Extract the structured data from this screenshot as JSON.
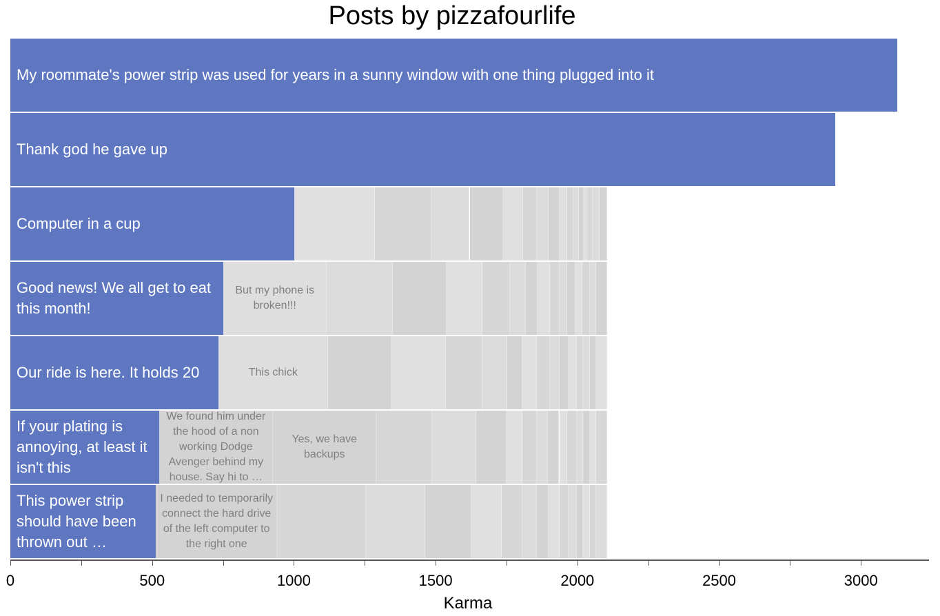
{
  "chart_data": {
    "type": "bar",
    "orientation": "horizontal-stacked",
    "title": "Posts by pizzafourlife",
    "xlabel": "Karma",
    "ylabel": "",
    "xlim": [
      0,
      3240
    ],
    "xticks": [
      0,
      500,
      1000,
      1500,
      2000,
      2500,
      3000
    ],
    "minor_tick_step": 250,
    "colors": {
      "post": "#5e77c0",
      "comment_shades": [
        "#dcdcdc",
        "#d3d3d3",
        "#e0e0e0",
        "#d7d7d7"
      ],
      "comment_text": "#808080"
    },
    "rows": [
      {
        "post": "My roommate's power strip was used for years in a sunny window with one thing plugged into it",
        "post_karma": 3127,
        "comments": []
      },
      {
        "post": "Thank god he gave up",
        "post_karma": 2910,
        "comments": []
      },
      {
        "post": "Computer in a cup",
        "post_karma": 1002,
        "comments": [
          {
            "text": "",
            "karma": 284
          },
          {
            "text": "",
            "karma": 200
          },
          {
            "text": "",
            "karma": 134
          },
          {
            "text": "",
            "karma": 119
          },
          {
            "text": "",
            "karma": 70
          },
          {
            "text": "",
            "karma": 47
          },
          {
            "text": "",
            "karma": 43
          },
          {
            "text": "",
            "karma": 37
          },
          {
            "text": "",
            "karma": 29
          },
          {
            "text": "",
            "karma": 22
          },
          {
            "text": "",
            "karma": 19
          },
          {
            "text": "",
            "karma": 17
          },
          {
            "text": "",
            "karma": 15
          },
          {
            "text": "",
            "karma": 17
          },
          {
            "text": "",
            "karma": 24
          },
          {
            "text": "",
            "karma": 27
          }
        ]
      },
      {
        "post": "Good news! We all get to eat this month!",
        "post_karma": 752,
        "comments": [
          {
            "text": "But my phone is broken!!!",
            "karma": 364
          },
          {
            "text": "",
            "karma": 234
          },
          {
            "text": "",
            "karma": 189
          },
          {
            "text": "",
            "karma": 127
          },
          {
            "text": "",
            "karma": 97
          },
          {
            "text": "",
            "karma": 56
          },
          {
            "text": "",
            "karma": 41
          },
          {
            "text": "",
            "karma": 42
          },
          {
            "text": "",
            "karma": 34
          },
          {
            "text": "",
            "karma": 29
          },
          {
            "text": "",
            "karma": 27
          },
          {
            "text": "",
            "karma": 26
          },
          {
            "text": "",
            "karma": 25
          },
          {
            "text": "",
            "karma": 24
          },
          {
            "text": "",
            "karma": 39
          }
        ]
      },
      {
        "post": "Our ride is here. It holds 20",
        "post_karma": 735,
        "comments": [
          {
            "text": "This chick",
            "karma": 386
          },
          {
            "text": "",
            "karma": 224
          },
          {
            "text": "",
            "karma": 192
          },
          {
            "text": "",
            "karma": 129
          },
          {
            "text": "",
            "karma": 87
          },
          {
            "text": "",
            "karma": 54
          },
          {
            "text": "",
            "karma": 51
          },
          {
            "text": "",
            "karma": 44
          },
          {
            "text": "",
            "karma": 34
          },
          {
            "text": "",
            "karma": 34
          },
          {
            "text": "",
            "karma": 27
          },
          {
            "text": "",
            "karma": 24
          },
          {
            "text": "",
            "karma": 22
          },
          {
            "text": "",
            "karma": 24
          },
          {
            "text": "",
            "karma": 39
          }
        ]
      },
      {
        "post": "If your plating is annoying, at least it isn't this",
        "post_karma": 526,
        "comments": [
          {
            "text": "We found him under the hood of a non working Dodge Avenger behind my house. Say hi to …",
            "karma": 401
          },
          {
            "text": "Yes, we have backups",
            "karma": 364
          },
          {
            "text": "",
            "karma": 197
          },
          {
            "text": "",
            "karma": 154
          },
          {
            "text": "",
            "karma": 107
          },
          {
            "text": "",
            "karma": 56
          },
          {
            "text": "",
            "karma": 51
          },
          {
            "text": "",
            "karma": 41
          },
          {
            "text": "",
            "karma": 39
          },
          {
            "text": "",
            "karma": 29
          },
          {
            "text": "",
            "karma": 32
          },
          {
            "text": "",
            "karma": 24
          },
          {
            "text": "",
            "karma": 22
          },
          {
            "text": "",
            "karma": 24
          },
          {
            "text": "",
            "karma": 39
          }
        ]
      },
      {
        "post": "This power strip should have been thrown out …",
        "post_karma": 513,
        "comments": [
          {
            "text": "I needed to temporarily connect the hard drive of the left computer to the right one",
            "karma": 431
          },
          {
            "text": "",
            "karma": 311
          },
          {
            "text": "",
            "karma": 209
          },
          {
            "text": "",
            "karma": 163
          },
          {
            "text": "",
            "karma": 107
          },
          {
            "text": "",
            "karma": 73
          },
          {
            "text": "",
            "karma": 49
          },
          {
            "text": "",
            "karma": 43
          },
          {
            "text": "",
            "karma": 37
          },
          {
            "text": "",
            "karma": 34
          },
          {
            "text": "",
            "karma": 27
          },
          {
            "text": "",
            "karma": 24
          },
          {
            "text": "",
            "karma": 22
          },
          {
            "text": "",
            "karma": 24
          },
          {
            "text": "",
            "karma": 39
          }
        ]
      }
    ]
  }
}
